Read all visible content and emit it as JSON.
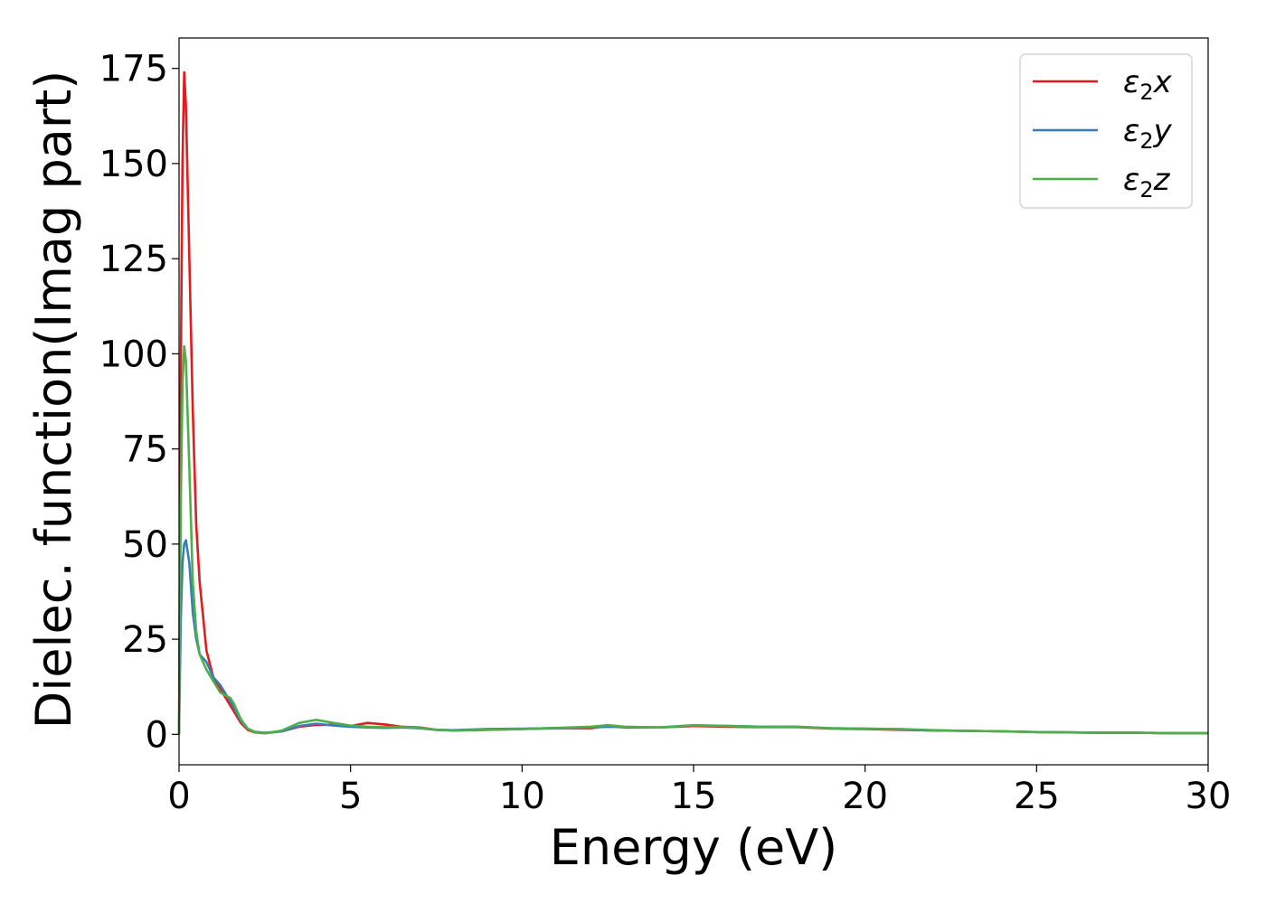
{
  "chart_data": {
    "type": "line",
    "xlabel": "Energy (eV)",
    "ylabel": "Dielec. function(Imag part)",
    "xlim": [
      0,
      30
    ],
    "ylim": [
      -8,
      183
    ],
    "xticks": [
      0,
      5,
      10,
      15,
      20,
      25,
      30
    ],
    "yticks": [
      0,
      25,
      50,
      75,
      100,
      125,
      150,
      175
    ],
    "grid": false,
    "legend_position": "top-right",
    "series": [
      {
        "name": "ε₂x",
        "legend_main": "ε",
        "legend_sub": "2",
        "legend_var": "x",
        "color": "#e41a1c",
        "x": [
          0,
          0.05,
          0.1,
          0.15,
          0.2,
          0.3,
          0.4,
          0.5,
          0.6,
          0.8,
          1.0,
          1.2,
          1.4,
          1.6,
          1.8,
          2.0,
          2.2,
          2.5,
          3.0,
          3.5,
          4.0,
          4.5,
          5.0,
          5.5,
          6.0,
          6.5,
          7.0,
          7.5,
          8.0,
          9.0,
          10.0,
          11.0,
          12.0,
          12.5,
          13.0,
          14.0,
          15.0,
          16.0,
          17.0,
          18.0,
          19.0,
          20.0,
          21.0,
          22.0,
          23.0,
          24.0,
          25.0,
          26.0,
          27.0,
          28.0,
          29.0,
          30.0
        ],
        "y": [
          0,
          95,
          150,
          174,
          165,
          125,
          85,
          55,
          40,
          22,
          15,
          12,
          9,
          6,
          3,
          1.2,
          0.5,
          0.3,
          0.8,
          2.0,
          2.5,
          2.5,
          2.2,
          3.0,
          2.6,
          2.0,
          1.8,
          1.2,
          1.0,
          1.2,
          1.4,
          1.6,
          1.6,
          2.2,
          1.8,
          1.8,
          2.2,
          2.0,
          1.9,
          1.9,
          1.5,
          1.4,
          1.2,
          1.0,
          0.9,
          0.8,
          0.6,
          0.5,
          0.4,
          0.4,
          0.3,
          0.3
        ]
      },
      {
        "name": "ε₂y",
        "legend_main": "ε",
        "legend_sub": "2",
        "legend_var": "y",
        "color": "#377eb8",
        "x": [
          0,
          0.05,
          0.1,
          0.15,
          0.2,
          0.3,
          0.4,
          0.5,
          0.6,
          0.7,
          0.8,
          1.0,
          1.2,
          1.4,
          1.6,
          1.8,
          2.0,
          2.2,
          2.5,
          3.0,
          3.5,
          4.0,
          4.5,
          5.0,
          5.5,
          6.0,
          6.5,
          7.0,
          7.5,
          8.0,
          9.0,
          10.0,
          11.0,
          12.0,
          12.5,
          13.0,
          14.0,
          15.0,
          16.0,
          17.0,
          18.0,
          19.0,
          20.0,
          21.0,
          22.0,
          23.0,
          24.0,
          25.0,
          26.0,
          27.0,
          28.0,
          29.0,
          30.0
        ],
        "y": [
          0,
          30,
          45,
          50,
          51,
          45,
          32,
          25,
          21,
          20,
          19,
          15,
          13,
          10,
          7,
          3.5,
          1.5,
          0.7,
          0.4,
          0.8,
          2.2,
          2.8,
          2.3,
          2.0,
          1.8,
          1.7,
          1.8,
          1.6,
          1.2,
          1.1,
          1.4,
          1.5,
          1.6,
          1.8,
          2.0,
          1.9,
          1.8,
          2.3,
          2.2,
          2.0,
          2.0,
          1.6,
          1.5,
          1.3,
          1.0,
          0.9,
          0.8,
          0.6,
          0.5,
          0.4,
          0.4,
          0.3,
          0.3
        ]
      },
      {
        "name": "ε₂z",
        "legend_main": "ε",
        "legend_sub": "2",
        "legend_var": "z",
        "color": "#4daf4a",
        "x": [
          0,
          0.05,
          0.1,
          0.15,
          0.2,
          0.3,
          0.4,
          0.5,
          0.6,
          0.8,
          1.0,
          1.2,
          1.4,
          1.5,
          1.6,
          1.8,
          2.0,
          2.2,
          2.5,
          3.0,
          3.5,
          4.0,
          4.5,
          5.0,
          5.5,
          6.0,
          6.5,
          7.0,
          7.5,
          8.0,
          9.0,
          10.0,
          11.0,
          12.0,
          12.5,
          13.0,
          14.0,
          15.0,
          16.0,
          17.0,
          18.0,
          19.0,
          20.0,
          21.0,
          22.0,
          23.0,
          24.0,
          25.0,
          26.0,
          27.0,
          28.0,
          29.0,
          30.0
        ],
        "y": [
          0,
          60,
          92,
          102,
          98,
          70,
          40,
          27,
          21,
          17,
          14,
          11,
          10,
          9.5,
          8,
          4,
          1.5,
          0.6,
          0.3,
          1.0,
          3.0,
          3.8,
          3.0,
          2.3,
          2.0,
          1.9,
          2.0,
          1.7,
          1.2,
          1.0,
          1.2,
          1.4,
          1.7,
          2.0,
          2.4,
          2.0,
          1.8,
          2.4,
          2.2,
          2.0,
          2.0,
          1.6,
          1.5,
          1.4,
          1.1,
          0.9,
          0.8,
          0.6,
          0.5,
          0.4,
          0.4,
          0.3,
          0.3
        ]
      }
    ]
  }
}
